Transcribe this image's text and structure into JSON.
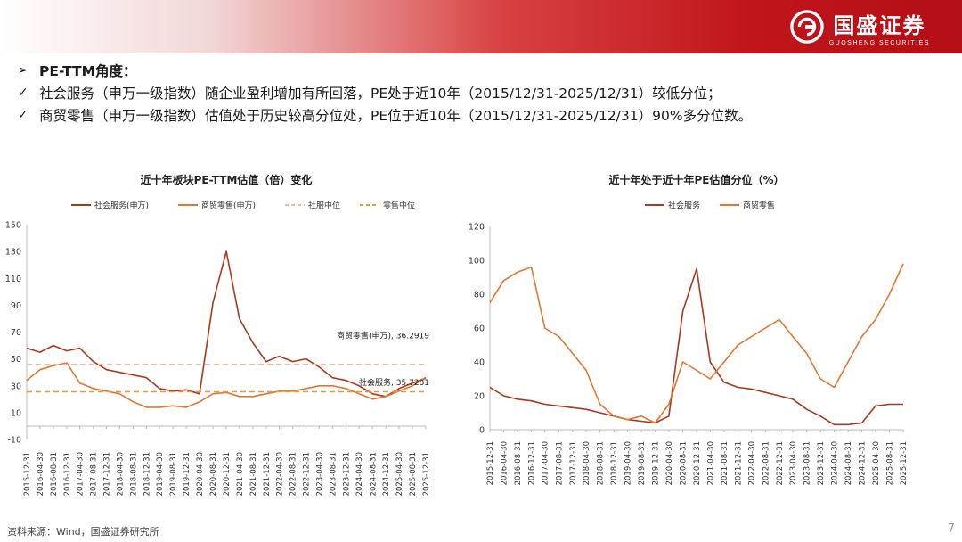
{
  "header": {
    "brand_cn": "国盛证券",
    "brand_en": "GUOSHENG SECURITIES",
    "accent": "#c0151b"
  },
  "bullets": [
    {
      "icon": "arrow-bullet-icon",
      "mark": "➢",
      "text": "PE-TTM角度：",
      "bold": true
    },
    {
      "icon": "check-icon",
      "mark": "✓",
      "text": "社会服务（申万一级指数）随企业盈利增加有所回落，PE处于近10年（2015/12/31-2025/12/31）较低分位；",
      "bold": false
    },
    {
      "icon": "check-icon",
      "mark": "✓",
      "text": "商贸零售（申万一级指数）估值处于历史较高分位处，PE位于近10年（2015/12/31-2025/12/31）90%多分位数。",
      "bold": false
    }
  ],
  "chart_data": [
    {
      "type": "line",
      "title": "近十年板块PE-TTM估值（倍）变化",
      "ylim": [
        -10,
        150
      ],
      "yticks": [
        -10,
        10,
        30,
        50,
        70,
        90,
        110,
        130,
        150
      ],
      "grid": false,
      "legend_position": "top",
      "x_dates": [
        "2015-12-31",
        "2016-04-30",
        "2016-08-31",
        "2016-12-31",
        "2017-04-30",
        "2017-08-31",
        "2017-12-31",
        "2018-04-30",
        "2018-08-31",
        "2018-12-31",
        "2019-04-30",
        "2019-08-31",
        "2019-12-31",
        "2020-04-30",
        "2020-08-31",
        "2020-12-31",
        "2021-04-30",
        "2021-08-31",
        "2021-12-31",
        "2022-04-30",
        "2022-08-31",
        "2022-12-31",
        "2023-04-30",
        "2023-08-31",
        "2023-12-31",
        "2024-04-30",
        "2024-08-31",
        "2024-12-31",
        "2025-04-30",
        "2025-08-31",
        "2025-12-31"
      ],
      "xticks": [
        "2015-12-31",
        "2016-04-30",
        "2016-08-31",
        "2016-12-31",
        "2017-04-30",
        "2017-08-31",
        "2017-12-31",
        "2018-04-30",
        "2018-08-31",
        "2018-12-31",
        "2019-04-30",
        "2019-08-31",
        "2019-12-31",
        "2020-04-30",
        "2020-08-31",
        "2020-12-31",
        "2021-04-30",
        "2021-08-31",
        "2021-12-31",
        "2022-04-30",
        "2022-08-31",
        "2022-12-31",
        "2023-04-30",
        "2023-08-31",
        "2023-12-31",
        "2024-04-30",
        "2024-08-31",
        "2024-12-31",
        "2025-04-30",
        "2025-08-31",
        "2025-12-31"
      ],
      "series": [
        {
          "name": "社会服务(申万)",
          "color": "#a8391f",
          "style": "solid",
          "values": [
            58,
            55,
            60,
            56,
            58,
            48,
            42,
            40,
            38,
            36,
            28,
            26,
            27,
            24,
            92,
            130,
            80,
            62,
            48,
            52,
            48,
            50,
            44,
            36,
            34,
            30,
            24,
            22,
            28,
            32,
            35.7
          ]
        },
        {
          "name": "商贸零售(申万)",
          "color": "#e0772d",
          "style": "solid",
          "values": [
            34,
            42,
            45,
            47,
            32,
            28,
            26,
            24,
            18,
            14,
            14,
            15,
            14,
            18,
            24,
            25,
            22,
            22,
            24,
            26,
            26,
            28,
            30,
            30,
            28,
            24,
            20,
            22,
            26,
            30,
            36.3
          ]
        },
        {
          "name": "社服中位",
          "color": "#f2b79a",
          "style": "dashed",
          "values": [
            46,
            46,
            46,
            46,
            46,
            46,
            46,
            46,
            46,
            46,
            46,
            46,
            46,
            46,
            46,
            46,
            46,
            46,
            46,
            46,
            46,
            46,
            46,
            46,
            46,
            46,
            46,
            46,
            46,
            46,
            46
          ]
        },
        {
          "name": "零售中位",
          "color": "#e39a3c",
          "style": "dashed",
          "values": [
            25.5,
            25.5,
            25.5,
            25.5,
            25.5,
            25.5,
            25.5,
            25.5,
            25.5,
            25.5,
            25.5,
            25.5,
            25.5,
            25.5,
            25.5,
            25.5,
            25.5,
            25.5,
            25.5,
            25.5,
            25.5,
            25.5,
            25.5,
            25.5,
            25.5,
            25.5,
            25.5,
            25.5,
            25.5,
            25.5,
            25.5
          ]
        }
      ],
      "annotations": [
        {
          "text": "商贸零售(申万), 36.2919",
          "series": 1,
          "x": "2025-12-31",
          "y": 36.2919
        },
        {
          "text": "社会服务, 35.7281",
          "series": 0,
          "x": "2025-12-31",
          "y": 35.7281
        }
      ]
    },
    {
      "type": "line",
      "title": "近十年处于近十年PE估值分位（%）",
      "ylim": [
        0,
        120
      ],
      "yticks": [
        0,
        20,
        40,
        60,
        80,
        100,
        120
      ],
      "grid": false,
      "legend_position": "top",
      "x_dates": [
        "2015-12-31",
        "2016-04-30",
        "2016-08-31",
        "2016-12-31",
        "2017-04-30",
        "2017-08-31",
        "2017-12-31",
        "2018-04-30",
        "2018-08-31",
        "2018-12-31",
        "2019-04-30",
        "2019-08-31",
        "2019-12-31",
        "2020-04-30",
        "2020-08-31",
        "2020-12-31",
        "2021-04-30",
        "2021-08-31",
        "2021-12-31",
        "2022-04-30",
        "2022-08-31",
        "2022-12-31",
        "2023-04-30",
        "2023-08-31",
        "2023-12-31",
        "2024-04-30",
        "2024-08-31",
        "2024-12-31",
        "2025-04-30",
        "2025-08-31",
        "2025-12-31"
      ],
      "xticks": [
        "2015-12-31",
        "2016-04-30",
        "2016-08-31",
        "2016-12-31",
        "2017-04-30",
        "2017-08-31",
        "2017-12-31",
        "2018-04-30",
        "2018-08-31",
        "2018-12-31",
        "2019-04-30",
        "2019-08-31",
        "2019-12-31",
        "2020-04-30",
        "2020-08-31",
        "2020-12-31",
        "2021-04-30",
        "2021-08-31",
        "2021-12-31",
        "2022-04-30",
        "2022-08-31",
        "2022-12-31",
        "2023-04-30",
        "2023-08-31",
        "2023-12-31",
        "2024-04-30",
        "2024-08-31",
        "2024-12-31",
        "2025-04-30",
        "2025-08-31",
        "2025-12-31"
      ],
      "series": [
        {
          "name": "社会服务",
          "color": "#a8391f",
          "style": "solid",
          "values": [
            25,
            20,
            18,
            17,
            15,
            14,
            13,
            12,
            10,
            8,
            6,
            5,
            4,
            8,
            70,
            95,
            40,
            28,
            25,
            24,
            22,
            20,
            18,
            12,
            8,
            3,
            3,
            4,
            14,
            15,
            15
          ]
        },
        {
          "name": "商贸零售",
          "color": "#e0772d",
          "style": "solid",
          "values": [
            75,
            88,
            93,
            96,
            60,
            55,
            45,
            35,
            15,
            8,
            6,
            8,
            4,
            15,
            40,
            35,
            30,
            40,
            50,
            55,
            60,
            65,
            55,
            45,
            30,
            25,
            40,
            55,
            65,
            80,
            98
          ]
        }
      ],
      "annotations": []
    }
  ],
  "footer": {
    "source": "资料来源：Wind，国盛证券研究所",
    "page": "7"
  }
}
